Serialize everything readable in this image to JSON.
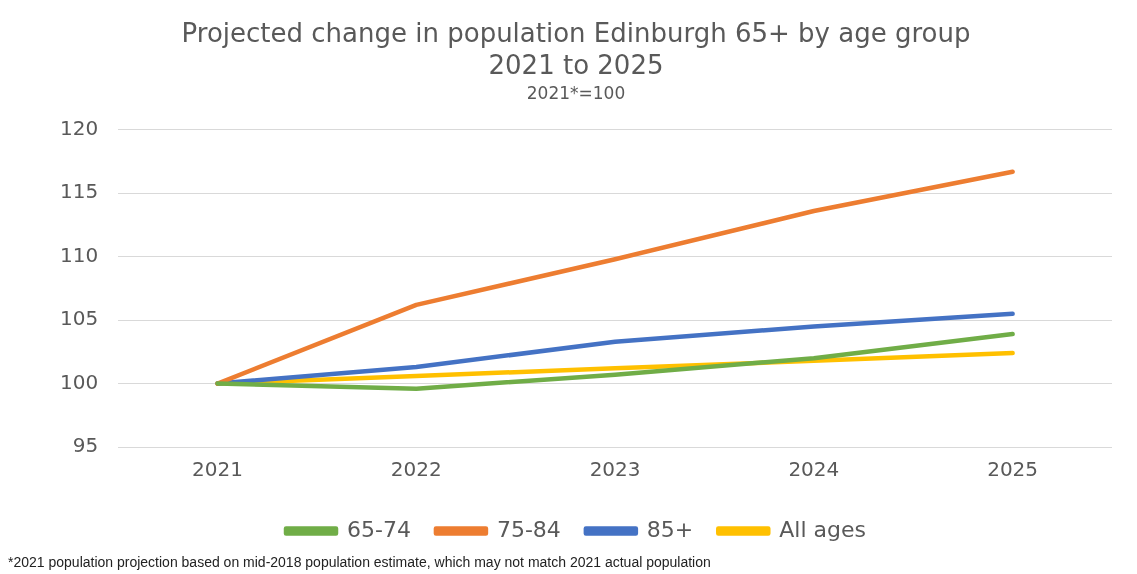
{
  "chart_data": {
    "type": "line",
    "title": "Projected change in population Edinburgh 65+ by age group\n2021 to 2025",
    "subtitle": "2021*=100",
    "categories": [
      "2021",
      "2022",
      "2023",
      "2024",
      "2025"
    ],
    "series": [
      {
        "name": "65-74",
        "color": "#70ad47",
        "values": [
          100,
          99.6,
          100.7,
          102.0,
          103.9
        ]
      },
      {
        "name": "75-84",
        "color": "#ed7d31",
        "values": [
          100,
          106.2,
          109.8,
          113.6,
          116.7
        ]
      },
      {
        "name": "85+",
        "color": "#4472c4",
        "values": [
          100,
          101.3,
          103.3,
          104.5,
          105.5
        ]
      },
      {
        "name": "All ages",
        "color": "#ffc000",
        "values": [
          100,
          100.6,
          101.2,
          101.8,
          102.4
        ]
      }
    ],
    "ylim": [
      95,
      120
    ],
    "yticks": [
      95,
      100,
      105,
      110,
      115,
      120
    ],
    "grid": "y",
    "legend": "bottom",
    "marker": "none",
    "line_style": "solid",
    "annotations": [
      "*2021 population projection based on mid-2018 population estimate, which may not match 2021 actual population"
    ]
  }
}
